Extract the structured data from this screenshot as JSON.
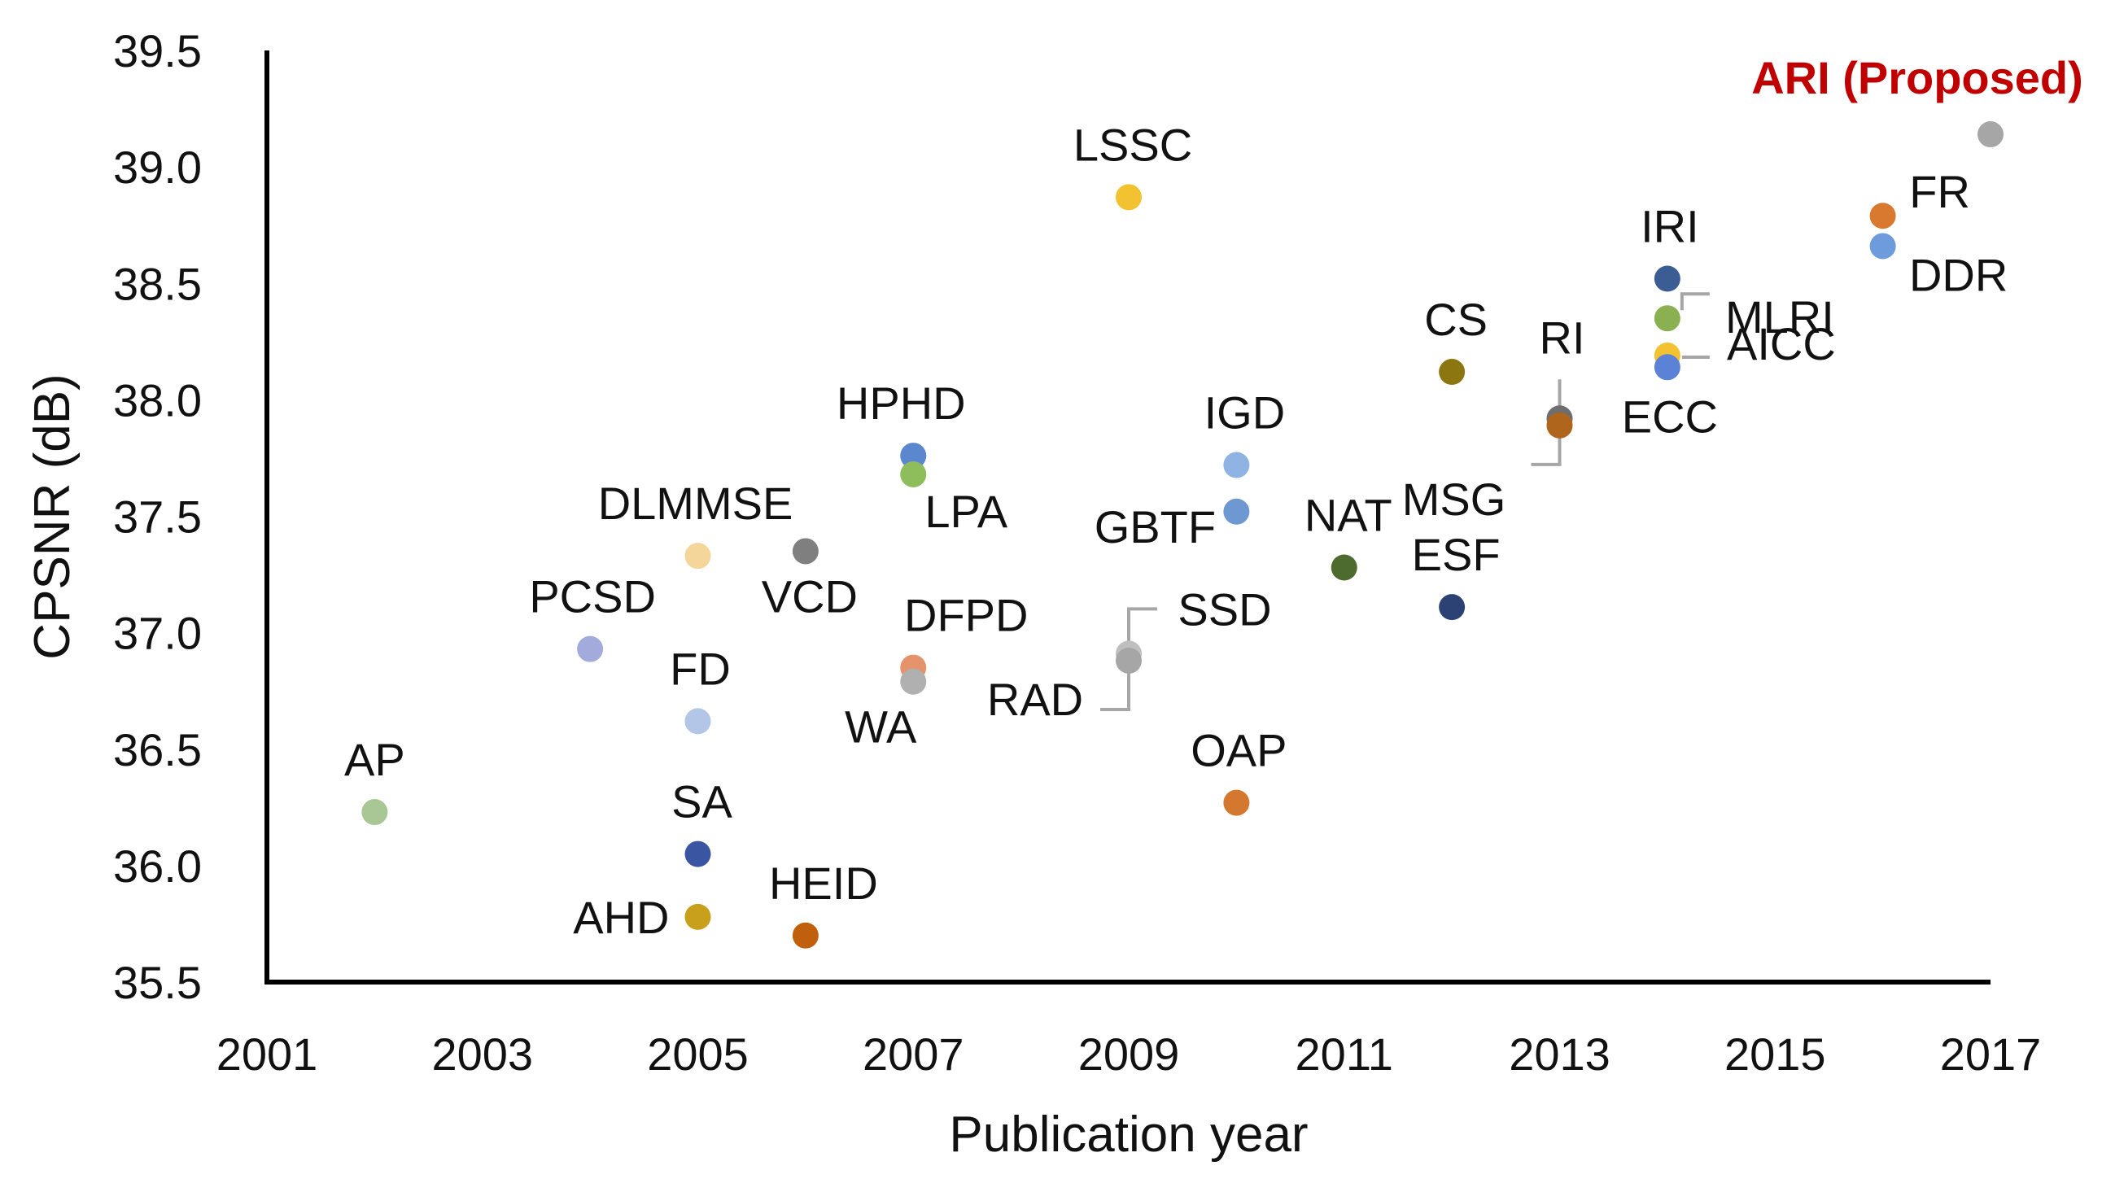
{
  "chart_data": {
    "type": "scatter",
    "title": "",
    "xlabel": "Publication year",
    "ylabel": "CPSNR (dB)",
    "xlim": [
      2001,
      2017
    ],
    "ylim": [
      35.5,
      39.5
    ],
    "xticks": [
      "2001",
      "2003",
      "2005",
      "2007",
      "2009",
      "2011",
      "2013",
      "2015",
      "2017"
    ],
    "yticks": [
      "35.5",
      "36.0",
      "36.5",
      "37.0",
      "37.5",
      "38.0",
      "38.5",
      "39.0",
      "39.5"
    ],
    "grid": false,
    "points": [
      {
        "name": "AP",
        "x": 2002,
        "y": 36.23,
        "color": "#a9c795"
      },
      {
        "name": "PCSD",
        "x": 2004,
        "y": 36.93,
        "color": "#a2abdb"
      },
      {
        "name": "DLMMSE",
        "x": 2005,
        "y": 37.33,
        "color": "#f4d59a"
      },
      {
        "name": "FD",
        "x": 2005,
        "y": 36.62,
        "color": "#b3c6e7"
      },
      {
        "name": "SA",
        "x": 2005,
        "y": 36.05,
        "color": "#3a56a3"
      },
      {
        "name": "AHD",
        "x": 2005,
        "y": 35.78,
        "color": "#c9a01b"
      },
      {
        "name": "VCD",
        "x": 2006,
        "y": 37.35,
        "color": "#7f7f7f"
      },
      {
        "name": "HEID",
        "x": 2006,
        "y": 35.7,
        "color": "#c0600d"
      },
      {
        "name": "HPHD",
        "x": 2007,
        "y": 37.76,
        "color": "#5b87cf"
      },
      {
        "name": "LPA",
        "x": 2007,
        "y": 37.68,
        "color": "#8ebd5c"
      },
      {
        "name": "DFPD",
        "x": 2007,
        "y": 36.85,
        "color": "#e5936a"
      },
      {
        "name": "WA",
        "x": 2007,
        "y": 36.79,
        "color": "#b0b0b0"
      },
      {
        "name": "LSSC",
        "x": 2009,
        "y": 38.87,
        "color": "#f2c230"
      },
      {
        "name": "SSD",
        "x": 2009,
        "y": 36.91,
        "color": "#bfbfbf"
      },
      {
        "name": "RAD",
        "x": 2009,
        "y": 36.88,
        "color": "#a6a6a6"
      },
      {
        "name": "IGD",
        "x": 2010,
        "y": 37.72,
        "color": "#8fb3e3"
      },
      {
        "name": "GBTF",
        "x": 2010,
        "y": 37.52,
        "color": "#6e98d2"
      },
      {
        "name": "OAP",
        "x": 2010,
        "y": 36.27,
        "color": "#d4782f"
      },
      {
        "name": "NAT",
        "x": 2011,
        "y": 37.28,
        "color": "#4e6b2f"
      },
      {
        "name": "CS",
        "x": 2012,
        "y": 38.12,
        "color": "#8c7610"
      },
      {
        "name": "ESF",
        "x": 2012,
        "y": 37.11,
        "color": "#2d4274"
      },
      {
        "name": "RI",
        "x": 2013,
        "y": 37.92,
        "color": "#6e6e6e"
      },
      {
        "name": "MSG",
        "x": 2013,
        "y": 37.89,
        "color": "#b0651c"
      },
      {
        "name": "IRI",
        "x": 2014,
        "y": 38.52,
        "color": "#3b5d94"
      },
      {
        "name": "MLRI",
        "x": 2014,
        "y": 38.35,
        "color": "#8ab052"
      },
      {
        "name": "AICC",
        "x": 2014,
        "y": 38.19,
        "color": "#f2c230"
      },
      {
        "name": "ECC",
        "x": 2014,
        "y": 38.14,
        "color": "#5b82d6"
      },
      {
        "name": "FR",
        "x": 2016,
        "y": 38.79,
        "color": "#d9782f"
      },
      {
        "name": "DDR",
        "x": 2016,
        "y": 38.66,
        "color": "#6d9bdc"
      },
      {
        "name": "ARI (Proposed)",
        "x": 2017,
        "y": 39.14,
        "color": "#a6a6a6"
      }
    ]
  }
}
